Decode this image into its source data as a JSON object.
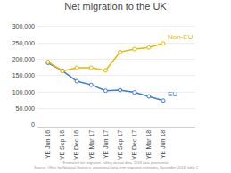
{
  "chart_data": {
    "type": "line",
    "title": "Net migration to the UK",
    "categories": [
      "YE Jun 16",
      "YE Sep 16",
      "YE Dec 16",
      "YE Mar 17",
      "YE Jun 17",
      "YE Sep 17",
      "YE Dec 17",
      "YE Mar 18",
      "YE Jun 18"
    ],
    "series": [
      {
        "color": "#3a7bd5",
        "marker": "circle",
        "values": [
          189000,
          165000,
          133000,
          122000,
          104000,
          106000,
          99000,
          87000,
          74000
        ]
      },
      {
        "color": "#e6b800",
        "marker": "circle",
        "values": [
          192000,
          164000,
          174000,
          174000,
          166000,
          222000,
          231000,
          236000,
          248000
        ]
      }
    ],
    "ylim": [
      0,
      310000
    ],
    "yticks": [
      0,
      {
        "value": 50000,
        "label": "50,000"
      },
      {
        "value": 100000,
        "label": "100,000"
      },
      {
        "value": 150000,
        "label": "150,000"
      },
      {
        "value": 200000,
        "label": "200,000"
      },
      {
        "value": 250000,
        "label": "250,000"
      },
      {
        "value": 300000,
        "label": "300,000"
      }
    ],
    "grid": true,
    "annotations": [
      {
        "text": "Non-EU",
        "x": "YE Jun 18",
        "y": 248000,
        "color": "#e6b800"
      },
      {
        "text": "EU",
        "x": "YE Jun 18",
        "y": 74000,
        "color": "#3a7bd5"
      }
    ],
    "footer": [
      "Estimated net migration, rolling annual data. 2018 data provisional.",
      "Source: Office for National Statistics, provisional long-term migration estimates, November 2018, table 1"
    ]
  }
}
